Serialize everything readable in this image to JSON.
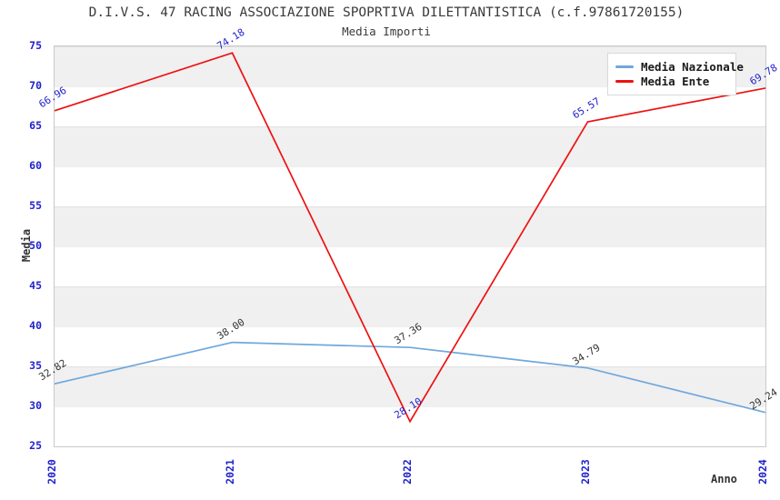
{
  "chart_data": {
    "type": "line",
    "title": "D.I.V.S. 47 RACING ASSOCIAZIONE SPOPRTIVA DILETTANTISTICA (c.f.97861720155)",
    "subtitle": "Media Importi",
    "xlabel": "Anno",
    "ylabel": "Media",
    "x": [
      "2020",
      "2021",
      "2022",
      "2023",
      "2024"
    ],
    "ylim": [
      25,
      75
    ],
    "ytick_step": 5,
    "grid": "horizontal-bands",
    "legend_position": "top-right",
    "tick_color": "#2222cc",
    "series": [
      {
        "name": "Media Nazionale",
        "color": "#6fa8dc",
        "label_color": "#333333",
        "values": [
          32.82,
          38.0,
          37.36,
          34.79,
          29.24
        ]
      },
      {
        "name": "Media Ente",
        "color": "#ee1111",
        "label_color": "#2222cc",
        "values": [
          66.96,
          74.18,
          28.1,
          65.57,
          69.78
        ]
      }
    ]
  }
}
